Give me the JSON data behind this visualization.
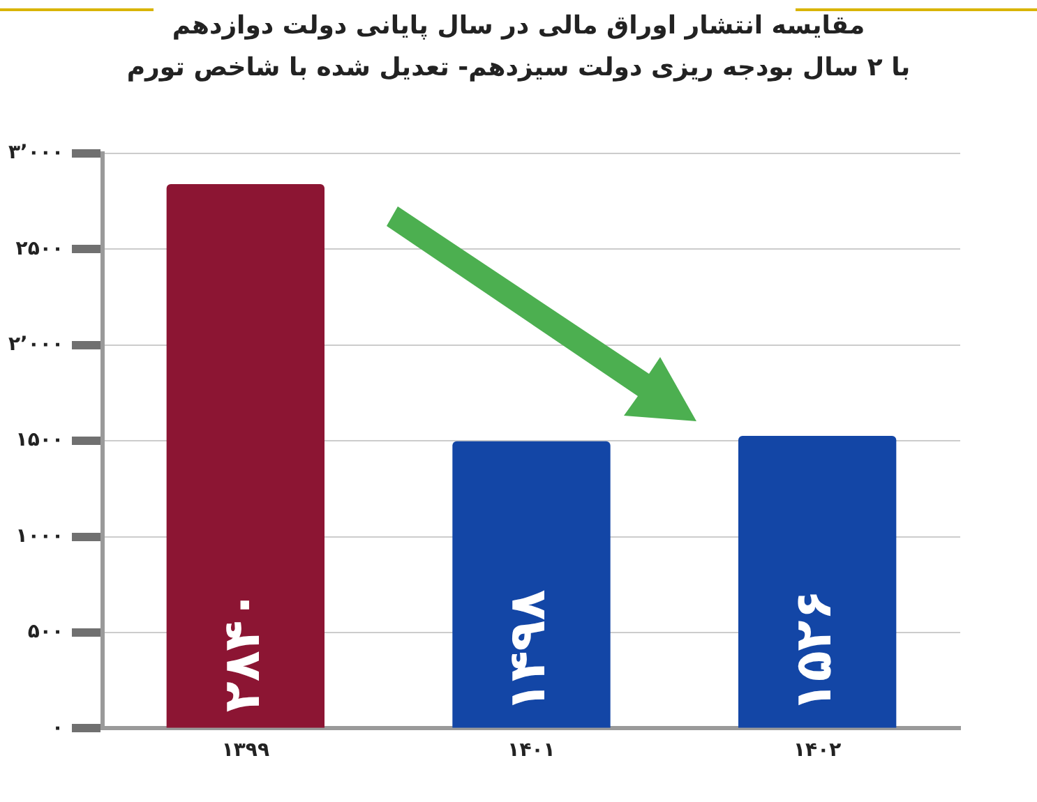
{
  "chart_data": {
    "type": "bar",
    "title": "مقایسه انتشار اوراق مالی در سال پایانی دولت دوازدهم",
    "subtitle": "با ۲ سال بودجه ریزی دولت سیزدهم- تعدیل شده با شاخص تورم",
    "categories": [
      "۱۳۹۹",
      "۱۴۰۱",
      "۱۴۰۲"
    ],
    "values": [
      2840,
      1498,
      1526
    ],
    "colors": [
      "#8c1533",
      "#1346a6",
      "#1346a6"
    ],
    "value_labels": [
      "۲۸۴۰",
      "۱۴۹۸",
      "۱۵۲۶"
    ],
    "ylim": [
      0,
      3000
    ],
    "yticks": [
      {
        "value": 0,
        "label": "۰"
      },
      {
        "value": 500,
        "label": "۵۰۰"
      },
      {
        "value": 1000,
        "label": "۱۰۰۰"
      },
      {
        "value": 1500,
        "label": "۱۵۰۰"
      },
      {
        "value": 2000,
        "label": "۲٬۰۰۰"
      },
      {
        "value": 2500,
        "label": "۲۵۰۰"
      },
      {
        "value": 3000,
        "label": "۳٬۰۰۰"
      }
    ],
    "grid": "y",
    "legend": false
  }
}
